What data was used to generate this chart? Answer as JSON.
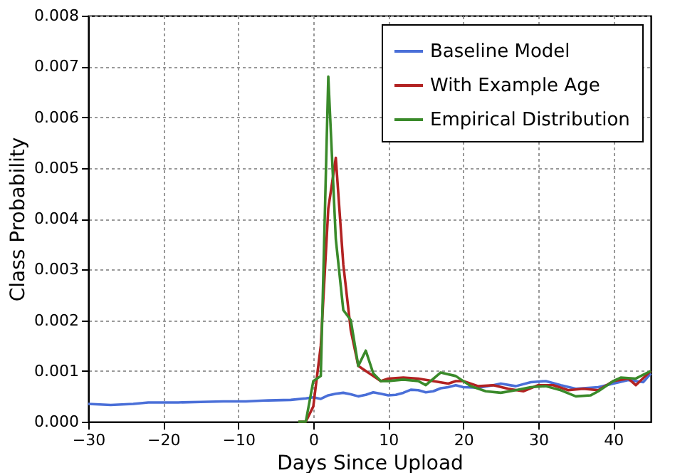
{
  "chart_data": {
    "type": "line",
    "xlabel": "Days Since Upload",
    "ylabel": "Class Probability",
    "xlim": [
      -30,
      45
    ],
    "xticks": [
      -30,
      -20,
      -10,
      0,
      10,
      20,
      30,
      40
    ],
    "ylim": [
      0,
      0.008
    ],
    "yticks": [
      {
        "value": 0,
        "label": "0.000"
      },
      {
        "value": 0.001,
        "label": "0.001"
      },
      {
        "value": 0.002,
        "label": "0.002"
      },
      {
        "value": 0.003,
        "label": "0.003"
      },
      {
        "value": 0.004,
        "label": "0.004"
      },
      {
        "value": 0.005,
        "label": "0.005"
      },
      {
        "value": 0.006,
        "label": "0.006"
      },
      {
        "value": 0.007,
        "label": "0.007"
      },
      {
        "value": 0.008,
        "label": "0.008"
      }
    ],
    "grid": true,
    "legend": "top right",
    "line_style": "solid",
    "marker": "none",
    "series": [
      {
        "name": "Baseline Model",
        "color": "#4a6fd8",
        "x": [
          -30,
          -27,
          -24,
          -22,
          -18,
          -15,
          -12,
          -9,
          -6,
          -3,
          -1,
          0,
          1,
          2,
          3,
          4,
          5,
          6,
          7,
          8,
          9,
          10,
          11,
          12,
          13,
          14,
          15,
          16,
          17,
          18,
          19,
          20,
          22,
          24,
          25,
          27,
          29,
          31,
          33,
          35,
          38,
          40,
          42,
          44,
          45
        ],
        "values": [
          0.00035,
          0.00033,
          0.00035,
          0.00038,
          0.00038,
          0.00039,
          0.0004,
          0.0004,
          0.00042,
          0.00043,
          0.00046,
          0.00048,
          0.00045,
          0.00052,
          0.00055,
          0.00057,
          0.00054,
          0.0005,
          0.00053,
          0.00058,
          0.00055,
          0.00052,
          0.00053,
          0.00057,
          0.00063,
          0.00062,
          0.00058,
          0.0006,
          0.00066,
          0.00068,
          0.00072,
          0.00068,
          0.00067,
          0.00072,
          0.00075,
          0.0007,
          0.00078,
          0.0008,
          0.00072,
          0.00065,
          0.00068,
          0.00075,
          0.00082,
          0.00078,
          0.00095
        ]
      },
      {
        "name": "With Example Age",
        "color": "#b22222",
        "x": [
          -2,
          -1,
          0,
          1,
          2,
          3,
          4,
          5,
          6,
          7,
          8,
          9,
          10,
          12,
          14,
          16,
          18,
          19,
          20,
          22,
          24,
          26,
          28,
          30,
          32,
          34,
          36,
          38,
          40,
          42,
          43,
          45
        ],
        "values": [
          0,
          0,
          0.0003,
          0.0015,
          0.0042,
          0.0052,
          0.0031,
          0.0018,
          0.0011,
          0.001,
          0.0009,
          0.0008,
          0.00085,
          0.00087,
          0.00085,
          0.0008,
          0.00075,
          0.0008,
          0.0008,
          0.0007,
          0.00072,
          0.00065,
          0.0006,
          0.00072,
          0.00072,
          0.00062,
          0.00065,
          0.00062,
          0.0008,
          0.00085,
          0.00072,
          0.001
        ]
      },
      {
        "name": "Empirical Distribution",
        "color": "#3a8a2a",
        "x": [
          -2,
          -1,
          0,
          1,
          2,
          3,
          4,
          5,
          6,
          7,
          8,
          9,
          10,
          12,
          14,
          15,
          17,
          19,
          21,
          23,
          25,
          27,
          29,
          31,
          33,
          35,
          37,
          38,
          40,
          41,
          43,
          45
        ],
        "values": [
          0,
          0,
          0.0008,
          0.0009,
          0.0068,
          0.0036,
          0.0022,
          0.002,
          0.0011,
          0.0014,
          0.00095,
          0.0008,
          0.0008,
          0.00083,
          0.0008,
          0.00072,
          0.00097,
          0.0009,
          0.0007,
          0.0006,
          0.00057,
          0.00062,
          0.00068,
          0.0007,
          0.00062,
          0.0005,
          0.00052,
          0.0006,
          0.0008,
          0.00087,
          0.00085,
          0.001
        ]
      }
    ]
  }
}
